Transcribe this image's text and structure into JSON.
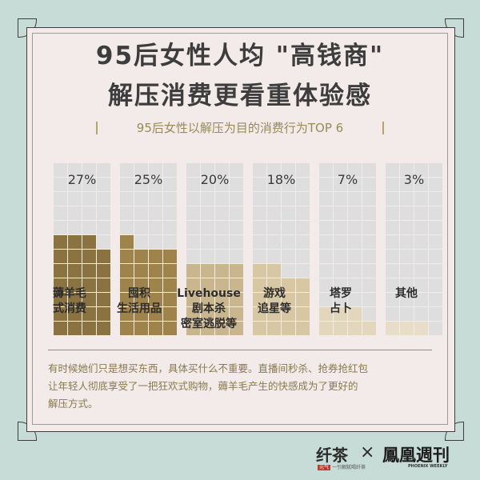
{
  "header": {
    "title_line1": "95后女性人均 \"高钱商\"",
    "title_line2": "解压消费更看重体验感",
    "subtitle": "95后女性以解压为目的消费行为TOP 6"
  },
  "chart_data": {
    "type": "bar",
    "title": "95后女性以解压为目的消费行为TOP 6",
    "unit": "%",
    "categories": [
      "薅羊毛\n式消费",
      "囤积\n生活用品",
      "Livehouse\n剧本杀\n密室逃脱等",
      "游戏\n追星等",
      "塔罗\n占卜",
      "其他"
    ],
    "values": [
      27,
      25,
      20,
      18,
      7,
      3
    ],
    "value_labels": [
      "27%",
      "25%",
      "20%",
      "18%",
      "7%",
      "3%"
    ],
    "ylim": [
      0,
      48
    ],
    "grid_cells_per_column": 48,
    "colors": [
      "#8a7241",
      "#9e834a",
      "#c9b68e",
      "#d7c7a3",
      "#e2d6bd",
      "#e8ddc7"
    ],
    "empty_cell_color": "#dedede"
  },
  "note": {
    "line1": "有时候她们只是想买东西，具体买什么不重要。直播间秒杀、抢券抢红包",
    "line2": "让年轻人彻底享受了一把狂欢式购物，薅羊毛产生的快感成为了更好的",
    "line3": "解压方式。"
  },
  "footer": {
    "logo_left": "纤茶",
    "logo_left_tag": "元气",
    "logo_left_sub": "一引解腻喝纤茶",
    "times_symbol": "×",
    "logo_right": "鳳凰週刊",
    "logo_right_sub": "PHOENIX WEEKLY"
  }
}
